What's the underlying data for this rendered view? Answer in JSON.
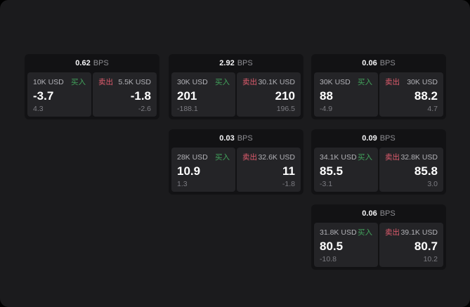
{
  "labels": {
    "buy": "买入",
    "sell": "卖出",
    "bps_unit": "BPS"
  },
  "colors": {
    "page_bg": "#1b1b1d",
    "card_bg": "#121214",
    "panel_bg": "#242427",
    "buy_green": "#42a35c",
    "sell_red": "#e05c6e",
    "primary_text": "#ffffff",
    "secondary_text": "#b2b2b7",
    "muted_text": "#7c7c82"
  },
  "cards": [
    {
      "bps": "0.62",
      "buy": {
        "size": "10K USD",
        "value": "-3.7",
        "sub": "4.3"
      },
      "sell": {
        "size": "5.5K USD",
        "value": "-1.8",
        "sub": "-2.6"
      }
    },
    {
      "bps": "2.92",
      "buy": {
        "size": "30K USD",
        "value": "201",
        "sub": "-188.1"
      },
      "sell": {
        "size": "30.1K USD",
        "value": "210",
        "sub": "196.5"
      }
    },
    {
      "bps": "0.06",
      "buy": {
        "size": "30K USD",
        "value": "88",
        "sub": "-4.9"
      },
      "sell": {
        "size": "30K USD",
        "value": "88.2",
        "sub": "4.7"
      }
    },
    {
      "bps": "0.03",
      "buy": {
        "size": "28K USD",
        "value": "10.9",
        "sub": "1.3"
      },
      "sell": {
        "size": "32.6K USD",
        "value": "11",
        "sub": "-1.8"
      }
    },
    {
      "bps": "0.09",
      "buy": {
        "size": "34.1K USD",
        "value": "85.5",
        "sub": "-3.1"
      },
      "sell": {
        "size": "32.8K USD",
        "value": "85.8",
        "sub": "3.0"
      }
    },
    {
      "bps": "0.06",
      "buy": {
        "size": "31.8K USD",
        "value": "80.5",
        "sub": "-10.8"
      },
      "sell": {
        "size": "39.1K USD",
        "value": "80.7",
        "sub": "10.2"
      }
    }
  ]
}
